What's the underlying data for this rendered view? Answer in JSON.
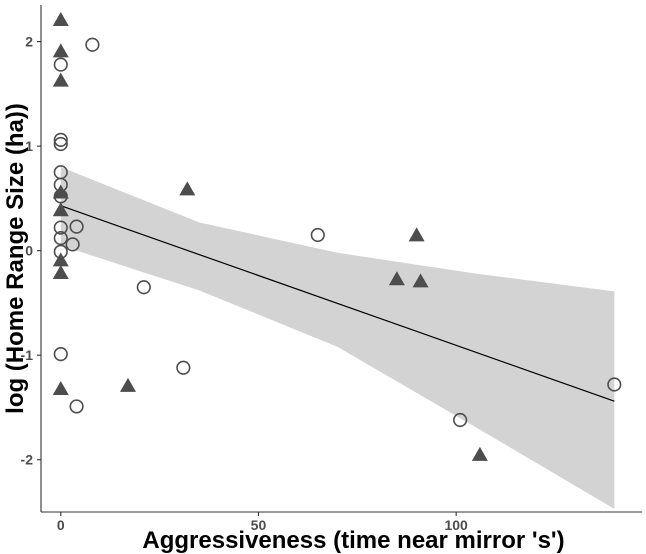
{
  "chart_data": {
    "type": "scatter",
    "xlabel": "Aggressiveness (time near mirror 's')",
    "ylabel": "log (Home Range Size (ha))",
    "xlim": [
      -5,
      147
    ],
    "ylim": [
      -2.5,
      2.35
    ],
    "x_ticks": [
      0,
      50,
      100
    ],
    "y_ticks": [
      2,
      1,
      0,
      -1,
      -2
    ],
    "x_tick_labels": [
      "0",
      "50",
      "100"
    ],
    "y_tick_labels": [
      "2",
      "1",
      "0",
      "-1",
      "-2"
    ],
    "grid": false,
    "legend": "none",
    "colors": {
      "triangle_fill": "#4d4d4d",
      "circle_stroke": "#4d4d4d",
      "ribbon": "#d3d3d3",
      "fit_line": "#000000"
    },
    "series": [
      {
        "marker": "triangle",
        "points": [
          [
            0,
            2.2
          ],
          [
            0,
            1.9
          ],
          [
            0,
            1.62
          ],
          [
            0,
            0.55
          ],
          [
            0,
            0.38
          ],
          [
            0,
            -0.1
          ],
          [
            0,
            -0.22
          ],
          [
            0,
            -1.33
          ],
          [
            17,
            -1.3
          ],
          [
            32,
            0.58
          ],
          [
            85,
            -0.28
          ],
          [
            90,
            0.14
          ],
          [
            91,
            -0.3
          ],
          [
            106,
            -1.96
          ]
        ]
      },
      {
        "marker": "circle",
        "points": [
          [
            0,
            1.78
          ],
          [
            0,
            1.06
          ],
          [
            0,
            1.02
          ],
          [
            0,
            0.75
          ],
          [
            0,
            0.63
          ],
          [
            0,
            0.52
          ],
          [
            0,
            0.22
          ],
          [
            0,
            0.12
          ],
          [
            0,
            -0.01
          ],
          [
            0,
            -0.99
          ],
          [
            3,
            0.06
          ],
          [
            4,
            0.23
          ],
          [
            4,
            -1.49
          ],
          [
            8,
            1.97
          ],
          [
            21,
            -0.35
          ],
          [
            31,
            -1.12
          ],
          [
            65,
            0.15
          ],
          [
            101,
            -1.62
          ],
          [
            140,
            -1.28
          ]
        ]
      }
    ],
    "fit": {
      "x": [
        0,
        140
      ],
      "y": [
        0.43,
        -1.44
      ],
      "ci_x": [
        0,
        35,
        70,
        105,
        140
      ],
      "ci_upper": [
        0.8,
        0.27,
        -0.02,
        -0.22,
        -0.39
      ],
      "ci_lower": [
        0.05,
        -0.38,
        -0.92,
        -1.69,
        -2.47
      ]
    }
  }
}
